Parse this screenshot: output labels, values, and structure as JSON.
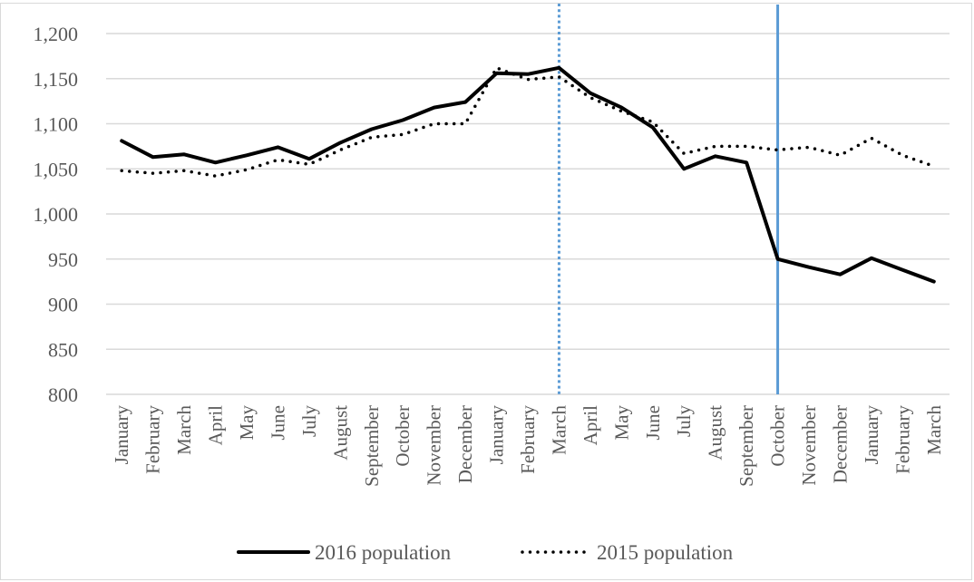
{
  "chart_data": {
    "type": "line",
    "title": "",
    "xlabel": "",
    "ylabel": "",
    "ylim": [
      800,
      1200
    ],
    "yticks": [
      800,
      850,
      900,
      950,
      1000,
      1050,
      1100,
      1150,
      1200
    ],
    "ytick_labels": [
      "800",
      "850",
      "900",
      "950",
      "1,000",
      "1,050",
      "1,100",
      "1,150",
      "1,200"
    ],
    "grid": true,
    "legend_position": "bottom",
    "categories": [
      "January",
      "February",
      "March",
      "April",
      "May",
      "June",
      "July",
      "August",
      "September",
      "October",
      "November",
      "December",
      "January",
      "February",
      "March",
      "April",
      "May",
      "June",
      "July",
      "August",
      "September",
      "October",
      "November",
      "December",
      "January",
      "February",
      "March"
    ],
    "series": [
      {
        "name": "2016 population",
        "style": "solid",
        "color": "#000000",
        "values": [
          1081,
          1063,
          1066,
          1057,
          1065,
          1074,
          1061,
          1079,
          1094,
          1104,
          1118,
          1124,
          1156,
          1155,
          1162,
          1134,
          1118,
          1096,
          1050,
          1064,
          1057,
          950,
          941,
          933,
          951,
          938,
          925
        ]
      },
      {
        "name": "2015 population",
        "style": "dotted",
        "color": "#000000",
        "values": [
          1048,
          1045,
          1048,
          1042,
          1049,
          1060,
          1055,
          1071,
          1085,
          1088,
          1100,
          1100,
          1162,
          1149,
          1152,
          1129,
          1114,
          1102,
          1067,
          1075,
          1075,
          1071,
          1074,
          1065,
          1084,
          1065,
          1053
        ]
      }
    ],
    "reference_lines": [
      {
        "category_index": 14,
        "category": "March",
        "style": "dotted",
        "color": "#5b9bd5"
      },
      {
        "category_index": 21,
        "category": "October",
        "style": "solid",
        "color": "#5b9bd5"
      }
    ],
    "legend": [
      {
        "label": "2016 population",
        "style": "solid"
      },
      {
        "label": "2015 population",
        "style": "dotted"
      }
    ]
  }
}
